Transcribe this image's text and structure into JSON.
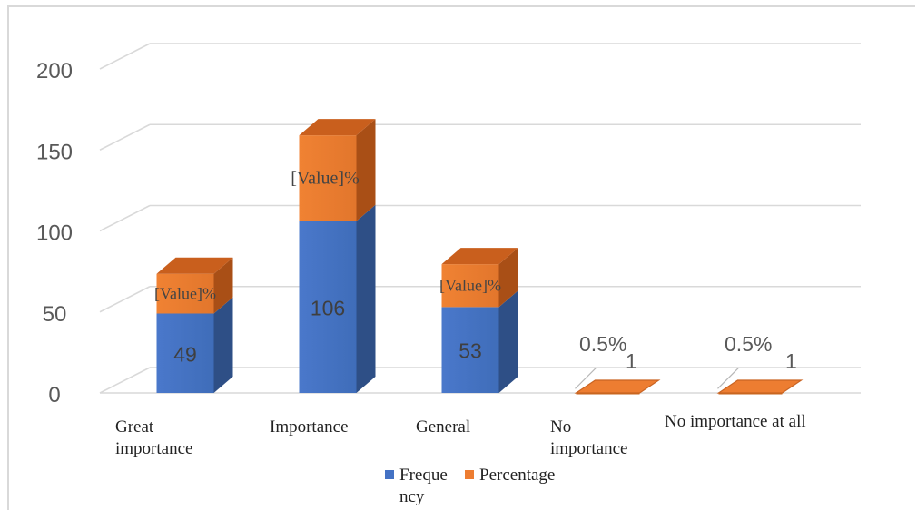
{
  "chart_data": {
    "type": "bar",
    "categories": [
      "Great importance",
      "Importance",
      "General",
      "No importance",
      "No importance at all"
    ],
    "series": [
      {
        "name": "Frequency",
        "values": [
          49,
          106,
          53,
          1,
          1
        ],
        "color": "#4472c4",
        "labels": [
          "49",
          "106",
          "53",
          "1",
          "1"
        ]
      },
      {
        "name": "Percentage",
        "values": [
          24.5,
          53,
          26.5,
          0.5,
          0.5
        ],
        "color": "#ed7d31",
        "labels": [
          "[Value]%",
          "[Value]%",
          "[Value]%",
          "0.5%",
          "0.5%"
        ]
      }
    ],
    "y_ticks": [
      "0",
      "50",
      "100",
      "150",
      "200"
    ],
    "ylim": [
      0,
      200
    ],
    "grid": true,
    "legend": "bottom"
  },
  "legend": {
    "frequency_label": "Frequency",
    "percentage_label": "Percentage"
  }
}
